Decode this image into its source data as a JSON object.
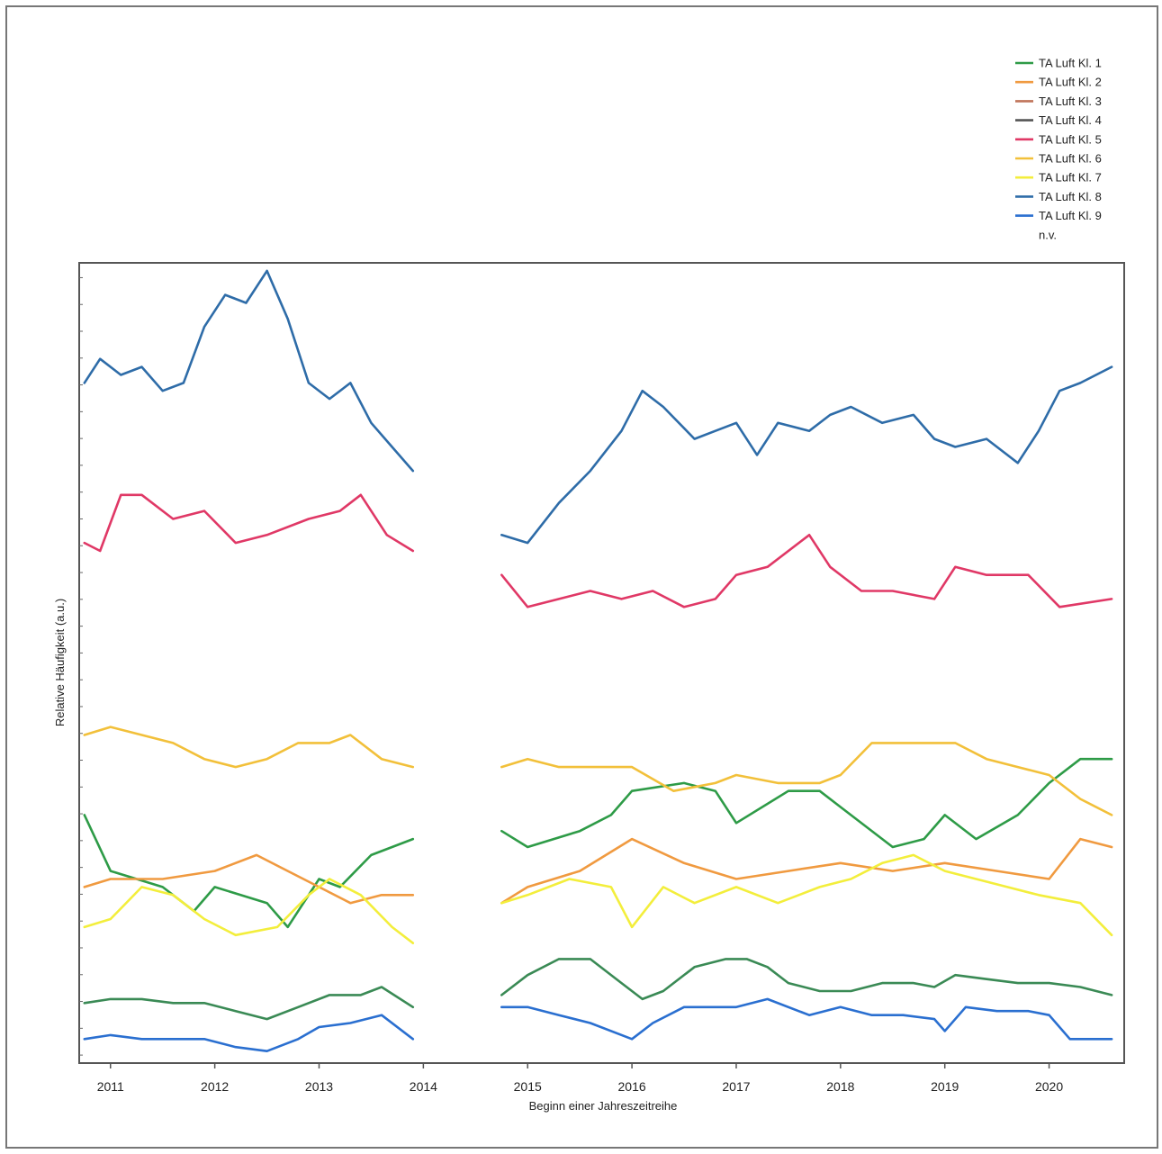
{
  "chart_data": {
    "type": "line",
    "xlabel": "Beginn einer Jahreszeitreihe",
    "ylabel": "Relative Häufigkeit (a.u.)",
    "xlim": [
      2010.7,
      2020.72
    ],
    "ylim": [
      0,
      1
    ],
    "x_ticks": [
      "2011",
      "2012",
      "2013",
      "2014",
      "2015",
      "2016",
      "2017",
      "2018",
      "2019",
      "2020"
    ],
    "grid": false,
    "legend_position": "top-right",
    "legend_extra": "n.v.",
    "series": [
      {
        "name": "TA Luft Kl. 1",
        "color": "#2e9b47",
        "segments": [
          {
            "x": [
              2010.75,
              2011.0,
              2011.5,
              2011.8,
              2012.0,
              2012.5,
              2012.7,
              2013.0,
              2013.2,
              2013.5,
              2013.9
            ],
            "y": [
              0.31,
              0.24,
              0.22,
              0.19,
              0.22,
              0.2,
              0.17,
              0.23,
              0.22,
              0.26,
              0.28
            ]
          },
          {
            "x": [
              2014.75,
              2015.0,
              2015.5,
              2015.8,
              2016.0,
              2016.5,
              2016.8,
              2017.0,
              2017.5,
              2017.8,
              2018.0,
              2018.5,
              2018.8,
              2019.0,
              2019.3,
              2019.7,
              2020.0,
              2020.3,
              2020.6
            ],
            "y": [
              0.29,
              0.27,
              0.29,
              0.31,
              0.34,
              0.35,
              0.34,
              0.3,
              0.34,
              0.34,
              0.32,
              0.27,
              0.28,
              0.31,
              0.28,
              0.31,
              0.35,
              0.38,
              0.38
            ]
          }
        ]
      },
      {
        "name": "TA Luft Kl. 2",
        "color": "#f09a40",
        "segments": [
          {
            "x": [
              2010.75,
              2011.0,
              2011.5,
              2012.0,
              2012.4,
              2012.7,
              2013.0,
              2013.3,
              2013.6,
              2013.9
            ],
            "y": [
              0.22,
              0.23,
              0.23,
              0.24,
              0.26,
              0.24,
              0.22,
              0.2,
              0.21,
              0.21
            ]
          },
          {
            "x": [
              2014.75,
              2015.0,
              2015.5,
              2016.0,
              2016.5,
              2017.0,
              2017.5,
              2018.0,
              2018.5,
              2019.0,
              2019.5,
              2020.0,
              2020.3,
              2020.6
            ],
            "y": [
              0.2,
              0.22,
              0.24,
              0.28,
              0.25,
              0.23,
              0.24,
              0.25,
              0.24,
              0.25,
              0.24,
              0.23,
              0.28,
              0.27
            ]
          }
        ]
      },
      {
        "name": "TA Luft Kl. 3",
        "color": "#c0745a",
        "segments": []
      },
      {
        "name": "TA Luft Kl. 4",
        "color": "#555555",
        "segments": []
      },
      {
        "name": "TA Luft Kl. 5",
        "color": "#e03866",
        "segments": [
          {
            "x": [
              2010.75,
              2010.9,
              2011.1,
              2011.3,
              2011.6,
              2011.9,
              2012.2,
              2012.5,
              2012.9,
              2013.2,
              2013.4,
              2013.65,
              2013.9
            ],
            "y": [
              0.65,
              0.64,
              0.71,
              0.71,
              0.68,
              0.69,
              0.65,
              0.66,
              0.68,
              0.69,
              0.71,
              0.66,
              0.64
            ]
          },
          {
            "x": [
              2014.75,
              2015.0,
              2015.3,
              2015.6,
              2015.9,
              2016.2,
              2016.5,
              2016.8,
              2017.0,
              2017.3,
              2017.7,
              2017.9,
              2018.2,
              2018.5,
              2018.9,
              2019.1,
              2019.4,
              2019.8,
              2020.1,
              2020.6
            ],
            "y": [
              0.61,
              0.57,
              0.58,
              0.59,
              0.58,
              0.59,
              0.57,
              0.58,
              0.61,
              0.62,
              0.66,
              0.62,
              0.59,
              0.59,
              0.58,
              0.62,
              0.61,
              0.61,
              0.57,
              0.58
            ]
          }
        ]
      },
      {
        "name": "TA Luft Kl. 6",
        "color": "#f2c03a",
        "segments": [
          {
            "x": [
              2010.75,
              2011.0,
              2011.3,
              2011.6,
              2011.9,
              2012.2,
              2012.5,
              2012.8,
              2013.1,
              2013.3,
              2013.6,
              2013.9
            ],
            "y": [
              0.41,
              0.42,
              0.41,
              0.4,
              0.38,
              0.37,
              0.38,
              0.4,
              0.4,
              0.41,
              0.38,
              0.37
            ]
          },
          {
            "x": [
              2014.75,
              2015.0,
              2015.3,
              2015.6,
              2016.0,
              2016.4,
              2016.8,
              2017.0,
              2017.4,
              2017.8,
              2018.0,
              2018.3,
              2018.6,
              2018.9,
              2019.1,
              2019.4,
              2019.7,
              2020.0,
              2020.3,
              2020.6
            ],
            "y": [
              0.37,
              0.38,
              0.37,
              0.37,
              0.37,
              0.34,
              0.35,
              0.36,
              0.35,
              0.35,
              0.36,
              0.4,
              0.4,
              0.4,
              0.4,
              0.38,
              0.37,
              0.36,
              0.33,
              0.31
            ]
          }
        ]
      },
      {
        "name": "TA Luft Kl. 7",
        "color": "#f3ee3c",
        "segments": [
          {
            "x": [
              2010.75,
              2011.0,
              2011.3,
              2011.6,
              2011.9,
              2012.2,
              2012.6,
              2012.9,
              2013.1,
              2013.4,
              2013.7,
              2013.9
            ],
            "y": [
              0.17,
              0.18,
              0.22,
              0.21,
              0.18,
              0.16,
              0.17,
              0.21,
              0.23,
              0.21,
              0.17,
              0.15
            ]
          },
          {
            "x": [
              2014.75,
              2015.0,
              2015.4,
              2015.8,
              2016.0,
              2016.3,
              2016.6,
              2017.0,
              2017.4,
              2017.8,
              2018.1,
              2018.4,
              2018.7,
              2019.0,
              2019.3,
              2019.6,
              2019.9,
              2020.3,
              2020.6
            ],
            "y": [
              0.2,
              0.21,
              0.23,
              0.22,
              0.17,
              0.22,
              0.2,
              0.22,
              0.2,
              0.22,
              0.23,
              0.25,
              0.26,
              0.24,
              0.23,
              0.22,
              0.21,
              0.2,
              0.16
            ]
          }
        ]
      },
      {
        "name": "TA Luft Kl. 8",
        "color": "#2e6ca8",
        "segments": [
          {
            "x": [
              2010.75,
              2010.9,
              2011.1,
              2011.3,
              2011.5,
              2011.7,
              2011.9,
              2012.1,
              2012.3,
              2012.5,
              2012.7,
              2012.9,
              2013.1,
              2013.3,
              2013.5,
              2013.7,
              2013.9
            ],
            "y": [
              0.85,
              0.88,
              0.86,
              0.87,
              0.84,
              0.85,
              0.92,
              0.96,
              0.95,
              0.99,
              0.93,
              0.85,
              0.83,
              0.85,
              0.8,
              0.77,
              0.74
            ]
          },
          {
            "x": [
              2014.75,
              2015.0,
              2015.3,
              2015.6,
              2015.9,
              2016.1,
              2016.3,
              2016.6,
              2016.8,
              2017.0,
              2017.2,
              2017.4,
              2017.7,
              2017.9,
              2018.1,
              2018.4,
              2018.7,
              2018.9,
              2019.1,
              2019.4,
              2019.7,
              2019.9,
              2020.1,
              2020.3,
              2020.6
            ],
            "y": [
              0.66,
              0.65,
              0.7,
              0.74,
              0.79,
              0.84,
              0.82,
              0.78,
              0.79,
              0.8,
              0.76,
              0.8,
              0.79,
              0.81,
              0.82,
              0.8,
              0.81,
              0.78,
              0.77,
              0.78,
              0.75,
              0.79,
              0.84,
              0.85,
              0.87
            ]
          }
        ]
      },
      {
        "name": "TA Luft Kl. 9",
        "color": "#2a6fd0",
        "segments": [
          {
            "x": [
              2010.75,
              2011.0,
              2011.3,
              2011.6,
              2011.9,
              2012.2,
              2012.5,
              2012.8,
              2013.0,
              2013.3,
              2013.6,
              2013.9
            ],
            "y": [
              0.03,
              0.035,
              0.03,
              0.03,
              0.03,
              0.02,
              0.015,
              0.03,
              0.045,
              0.05,
              0.06,
              0.03
            ]
          },
          {
            "x": [
              2014.75,
              2015.0,
              2015.3,
              2015.6,
              2016.0,
              2016.2,
              2016.5,
              2016.8,
              2017.0,
              2017.3,
              2017.7,
              2018.0,
              2018.3,
              2018.6,
              2018.9,
              2019.0,
              2019.2,
              2019.5,
              2019.8,
              2020.0,
              2020.2,
              2020.6
            ],
            "y": [
              0.07,
              0.07,
              0.06,
              0.05,
              0.03,
              0.05,
              0.07,
              0.07,
              0.07,
              0.08,
              0.06,
              0.07,
              0.06,
              0.06,
              0.055,
              0.04,
              0.07,
              0.065,
              0.065,
              0.06,
              0.03,
              0.03
            ]
          }
        ]
      },
      {
        "name": "",
        "color": "#3a8a55",
        "segments": [
          {
            "x": [
              2010.75,
              2011.0,
              2011.3,
              2011.6,
              2011.9,
              2012.2,
              2012.5,
              2012.8,
              2013.1,
              2013.4,
              2013.6,
              2013.9
            ],
            "y": [
              0.075,
              0.08,
              0.08,
              0.075,
              0.075,
              0.065,
              0.055,
              0.07,
              0.085,
              0.085,
              0.095,
              0.07
            ]
          },
          {
            "x": [
              2014.75,
              2015.0,
              2015.3,
              2015.6,
              2015.9,
              2016.1,
              2016.3,
              2016.6,
              2016.9,
              2017.1,
              2017.3,
              2017.5,
              2017.8,
              2018.1,
              2018.4,
              2018.7,
              2018.9,
              2019.1,
              2019.4,
              2019.7,
              2020.0,
              2020.3,
              2020.6
            ],
            "y": [
              0.085,
              0.11,
              0.13,
              0.13,
              0.1,
              0.08,
              0.09,
              0.12,
              0.13,
              0.13,
              0.12,
              0.1,
              0.09,
              0.09,
              0.1,
              0.1,
              0.095,
              0.11,
              0.105,
              0.1,
              0.1,
              0.095,
              0.085
            ]
          }
        ]
      }
    ]
  }
}
